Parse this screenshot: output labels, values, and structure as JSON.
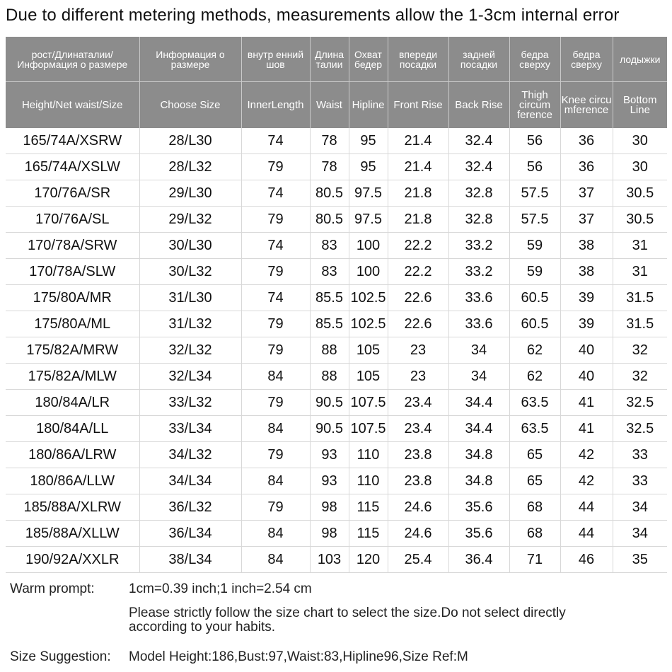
{
  "title": "Due to different metering methods, measurements allow the 1-3cm internal error",
  "table": {
    "headers_ru": [
      "рост/Длинаталии/ Информация о размере",
      "Информация о размере",
      "внутр енний шов",
      "Длина талии",
      "Охват бедер",
      "впереди посадки",
      "задней посадки",
      "бедра сверху",
      "бедра сверху",
      "лодыжки"
    ],
    "headers_en": [
      "Height/Net waist/Size",
      "Choose Size",
      "InnerLength",
      "Waist",
      "Hipline",
      "Front Rise",
      "Back Rise",
      "Thigh circum ference",
      "Knee circu mference",
      "Bottom Line"
    ],
    "rows": [
      [
        "165/74A/XSRW",
        "28/L30",
        "74",
        "78",
        "95",
        "21.4",
        "32.4",
        "56",
        "36",
        "30"
      ],
      [
        "165/74A/XSLW",
        "28/L32",
        "79",
        "78",
        "95",
        "21.4",
        "32.4",
        "56",
        "36",
        "30"
      ],
      [
        "170/76A/SR",
        "29/L30",
        "74",
        "80.5",
        "97.5",
        "21.8",
        "32.8",
        "57.5",
        "37",
        "30.5"
      ],
      [
        "170/76A/SL",
        "29/L32",
        "79",
        "80.5",
        "97.5",
        "21.8",
        "32.8",
        "57.5",
        "37",
        "30.5"
      ],
      [
        "170/78A/SRW",
        "30/L30",
        "74",
        "83",
        "100",
        "22.2",
        "33.2",
        "59",
        "38",
        "31"
      ],
      [
        "170/78A/SLW",
        "30/L32",
        "79",
        "83",
        "100",
        "22.2",
        "33.2",
        "59",
        "38",
        "31"
      ],
      [
        "175/80A/MR",
        "31/L30",
        "74",
        "85.5",
        "102.5",
        "22.6",
        "33.6",
        "60.5",
        "39",
        "31.5"
      ],
      [
        "175/80A/ML",
        "31/L32",
        "79",
        "85.5",
        "102.5",
        "22.6",
        "33.6",
        "60.5",
        "39",
        "31.5"
      ],
      [
        "175/82A/MRW",
        "32/L32",
        "79",
        "88",
        "105",
        "23",
        "34",
        "62",
        "40",
        "32"
      ],
      [
        "175/82A/MLW",
        "32/L34",
        "84",
        "88",
        "105",
        "23",
        "34",
        "62",
        "40",
        "32"
      ],
      [
        "180/84A/LR",
        "33/L32",
        "79",
        "90.5",
        "107.5",
        "23.4",
        "34.4",
        "63.5",
        "41",
        "32.5"
      ],
      [
        "180/84A/LL",
        "33/L34",
        "84",
        "90.5",
        "107.5",
        "23.4",
        "34.4",
        "63.5",
        "41",
        "32.5"
      ],
      [
        "180/86A/LRW",
        "34/L32",
        "79",
        "93",
        "110",
        "23.8",
        "34.8",
        "65",
        "42",
        "33"
      ],
      [
        "180/86A/LLW",
        "34/L34",
        "84",
        "93",
        "110",
        "23.8",
        "34.8",
        "65",
        "42",
        "33"
      ],
      [
        "185/88A/XLRW",
        "36/L32",
        "79",
        "98",
        "115",
        "24.6",
        "35.6",
        "68",
        "44",
        "34"
      ],
      [
        "185/88A/XLLW",
        "36/L34",
        "84",
        "98",
        "115",
        "24.6",
        "35.6",
        "68",
        "44",
        "34"
      ],
      [
        "190/92A/XXLR",
        "38/L34",
        "84",
        "103",
        "120",
        "25.4",
        "36.4",
        "71",
        "46",
        "35"
      ]
    ]
  },
  "notes": {
    "warm_prompt_label": "Warm prompt:",
    "conversion": "1cm=0.39 inch;1 inch=2.54 cm",
    "instruction_line1": "Please strictly follow the size chart  to select the size.Do not select directly",
    "instruction_line2": "according to your habits.",
    "size_suggestion_label": "Size Suggestion:",
    "size_suggestion": "Model Height:186,Bust:97,Waist:83,Hipline96,Size Ref:M"
  },
  "colors": {
    "header_bg": "#8c8c8c",
    "header_text": "#ffffff",
    "body_text": "#111111"
  }
}
